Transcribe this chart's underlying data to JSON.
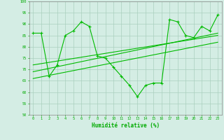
{
  "x": [
    0,
    1,
    2,
    3,
    4,
    5,
    6,
    7,
    8,
    9,
    10,
    11,
    12,
    13,
    14,
    15,
    16,
    17,
    18,
    19,
    20,
    21,
    22,
    23
  ],
  "y_main": [
    86,
    86,
    67,
    72,
    85,
    87,
    91,
    89,
    76,
    75,
    71,
    67,
    63,
    58,
    63,
    64,
    64,
    92,
    91,
    85,
    84,
    89,
    87,
    94
  ],
  "trend1_x": [
    0,
    23
  ],
  "trend1_y": [
    66,
    82
  ],
  "trend2_x": [
    0,
    23
  ],
  "trend2_y": [
    69,
    86
  ],
  "trend3_x": [
    0,
    23
  ],
  "trend3_y": [
    72,
    85
  ],
  "xlabel": "Humidité relative (%)",
  "ylim": [
    50,
    100
  ],
  "xlim": [
    -0.5,
    23.5
  ],
  "yticks": [
    50,
    55,
    60,
    65,
    70,
    75,
    80,
    85,
    90,
    95,
    100
  ],
  "xticks": [
    0,
    1,
    2,
    3,
    4,
    5,
    6,
    7,
    8,
    9,
    10,
    11,
    12,
    13,
    14,
    15,
    16,
    17,
    18,
    19,
    20,
    21,
    22,
    23
  ],
  "line_color": "#00bb00",
  "bg_color": "#d4ede4",
  "grid_color": "#aacfbe",
  "tick_label_color": "#00aa00",
  "xlabel_color": "#00aa00"
}
